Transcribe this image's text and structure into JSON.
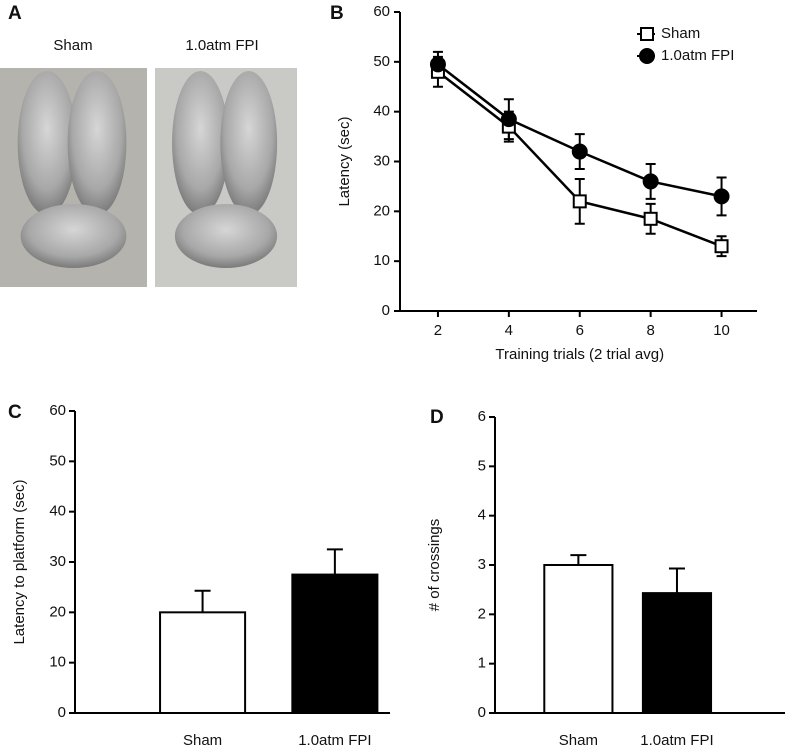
{
  "chart_data": [
    {
      "type": "image",
      "panel": "A",
      "captions": [
        "Sham",
        "1.0atm FPI"
      ]
    },
    {
      "type": "line",
      "panel": "B",
      "x_label": "Training trials (2 trial avg)",
      "y_label": "Latency (sec)",
      "x": [
        2,
        4,
        6,
        8,
        10
      ],
      "xlim": [
        1,
        11
      ],
      "xticks": [
        2,
        4,
        6,
        8,
        10
      ],
      "ylim": [
        0,
        60
      ],
      "yticks": [
        0,
        10,
        20,
        30,
        40,
        50,
        60
      ],
      "legend": "upper right",
      "series": [
        {
          "name": "Sham",
          "color": "#000000",
          "marker": "square",
          "fill": "#ffffff",
          "values": [
            48,
            37,
            22,
            18.5,
            13
          ],
          "errors": [
            3,
            3,
            4.5,
            3,
            2
          ]
        },
        {
          "name": "1.0atm FPI",
          "color": "#000000",
          "marker": "circle",
          "fill": "#000000",
          "values": [
            49.5,
            38.5,
            32,
            26,
            23
          ],
          "errors": [
            2.5,
            4,
            3.5,
            3.5,
            3.8
          ]
        }
      ]
    },
    {
      "type": "bar",
      "panel": "C",
      "y_label": "Latency to platform (sec)",
      "categories": [
        "Sham",
        "1.0atm FPI"
      ],
      "values": [
        20,
        27.5
      ],
      "errors": [
        4.3,
        5
      ],
      "colors": [
        "#ffffff",
        "#000000"
      ],
      "ylim": [
        0,
        60
      ],
      "yticks": [
        0,
        10,
        20,
        30,
        40,
        50,
        60
      ]
    },
    {
      "type": "bar",
      "panel": "D",
      "y_label": "# of crossings",
      "categories": [
        "Sham",
        "1.0atm FPI"
      ],
      "values": [
        3,
        2.43
      ],
      "errors": [
        0.2,
        0.5
      ],
      "colors": [
        "#ffffff",
        "#000000"
      ],
      "ylim": [
        0,
        6
      ],
      "yticks": [
        0,
        1,
        2,
        3,
        4,
        5,
        6
      ]
    }
  ]
}
